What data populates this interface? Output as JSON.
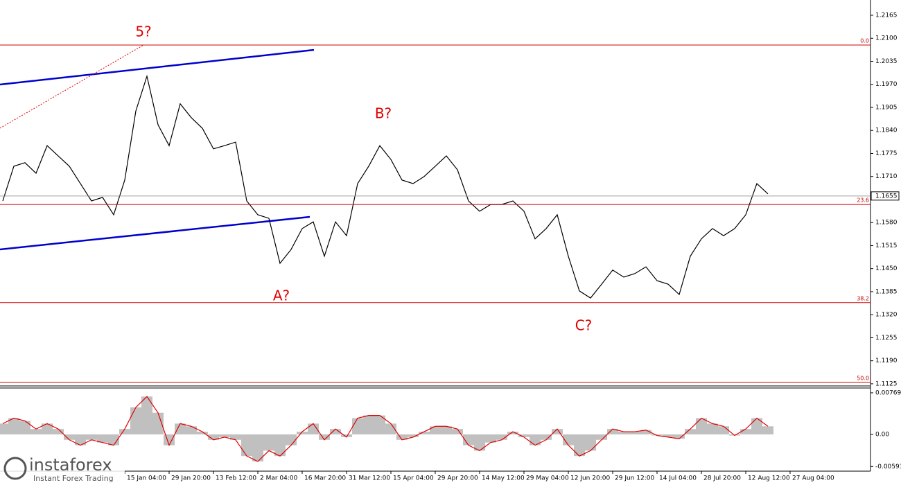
{
  "chart_data": [
    {
      "type": "line",
      "categories": [
        null,
        null,
        null,
        null,
        null,
        null,
        null,
        null,
        null,
        null,
        null,
        "15 Jan 04:00",
        null,
        null,
        null,
        "29 Jan 20:00",
        null,
        null,
        null,
        "13 Feb 12:00",
        null,
        null,
        null,
        "2 Mar 04:00",
        null,
        null,
        null,
        "16 Mar 20:00",
        null,
        null,
        null,
        "31 Mar 12:00",
        null,
        null,
        null,
        "15 Apr 04:00",
        null,
        null,
        null,
        "29 Apr 20:00",
        null,
        null,
        null,
        "14 May 12:00",
        null,
        null,
        null,
        "29 May 04:00",
        null,
        null,
        null,
        "12 Jun 20:00",
        null,
        null,
        null,
        "29 Jun 12:00",
        null,
        null,
        null,
        "14 Jul 04:00",
        null,
        null,
        null,
        "28 Jul 20:00",
        null,
        null,
        null,
        "12 Aug 12:00",
        null,
        null,
        null,
        "27 Aug 04:00"
      ],
      "series": [
        {
          "color": "#000000",
          "values": [
            1.1641,
            1.1739,
            1.1749,
            1.1719,
            1.1797,
            1.1768,
            1.1739,
            1.169,
            1.1641,
            1.1651,
            1.1602,
            1.17,
            1.1895,
            1.1993,
            1.1856,
            1.1797,
            1.1915,
            1.1876,
            1.1846,
            1.1788,
            1.1797,
            1.1807,
            1.1641,
            1.1602,
            1.1592,
            1.1465,
            1.1504,
            1.1563,
            1.1582,
            1.1485,
            1.1582,
            1.1543,
            1.169,
            1.1739,
            1.1797,
            1.1758,
            1.17,
            1.169,
            1.171,
            1.1739,
            1.1768,
            1.1729,
            1.1641,
            1.1612,
            1.1631,
            1.1631,
            1.1641,
            1.1612,
            1.1534,
            1.1563,
            1.1602,
            1.1485,
            1.1387,
            1.1367,
            1.1406,
            1.1446,
            1.1426,
            1.1436,
            1.1455,
            1.1416,
            1.1406,
            1.1377,
            1.1485,
            1.1534,
            1.1563,
            1.1543,
            1.1563,
            1.1602,
            1.169,
            1.1661,
            null,
            null
          ]
        }
      ],
      "ylim": [
        1.1119,
        1.2208
      ],
      "yticks": [
        1.2165,
        {
          "value": 1.21,
          "label": "1.2100"
        },
        1.2035,
        {
          "value": 1.197,
          "label": "1.1970"
        },
        1.1905,
        {
          "value": 1.184,
          "label": "1.1840"
        },
        1.1775,
        {
          "value": 1.171,
          "label": "1.1710"
        },
        {
          "value": 1.158,
          "label": "1.1580"
        },
        1.1515,
        {
          "value": 1.145,
          "label": "1.1450"
        },
        1.1385,
        {
          "value": 1.132,
          "label": "1.1320"
        },
        1.1255,
        {
          "value": 1.119,
          "label": "1.1190"
        },
        1.1125
      ],
      "last_price": 1.1655,
      "levels": [
        {
          "label": "0.0",
          "value": 1.2081
        },
        {
          "label": "23.6",
          "value": 1.1631
        },
        {
          "label": "38.2",
          "value": 1.1354
        },
        {
          "label": "50.0",
          "value": 1.1129
        }
      ],
      "annotations": [
        "5?",
        "B?",
        "A?",
        "C?"
      ],
      "watermark": [
        "instaforex",
        "Instant Forex Trading"
      ]
    },
    {
      "type": "bar",
      "series": [
        {
          "color": "#c0c0c0",
          "values": [
            0.002,
            0.003,
            0.0025,
            0.001,
            0.002,
            0.001,
            -0.001,
            -0.002,
            -0.001,
            -0.0015,
            -0.002,
            0.001,
            0.005,
            0.007,
            0.004,
            -0.002,
            0.002,
            0.0015,
            0.0005,
            -0.001,
            -0.0005,
            -0.001,
            -0.004,
            -0.005,
            -0.003,
            -0.004,
            -0.002,
            0.0005,
            0.002,
            -0.001,
            0.001,
            -0.0005,
            0.003,
            0.0035,
            0.0035,
            0.002,
            -0.001,
            -0.0005,
            0.0005,
            0.0015,
            0.0015,
            0.001,
            -0.002,
            -0.003,
            -0.0015,
            -0.001,
            0.0005,
            -0.0005,
            -0.002,
            -0.001,
            0.001,
            -0.002,
            -0.004,
            -0.003,
            -0.001,
            0.001,
            0.0005,
            0.0005,
            0.0008,
            -0.0002,
            -0.0005,
            -0.0008,
            0.001,
            0.003,
            0.002,
            0.0015,
            -0.0002,
            0.001,
            0.003,
            0.0015,
            null,
            null
          ]
        }
      ],
      "line_color": "#e00000",
      "ylim": [
        -0.00679,
        0.00858
      ],
      "yticks": [
        0.00769,
        {
          "value": 0,
          "label": "0.00"
        },
        -0.00593
      ]
    }
  ]
}
